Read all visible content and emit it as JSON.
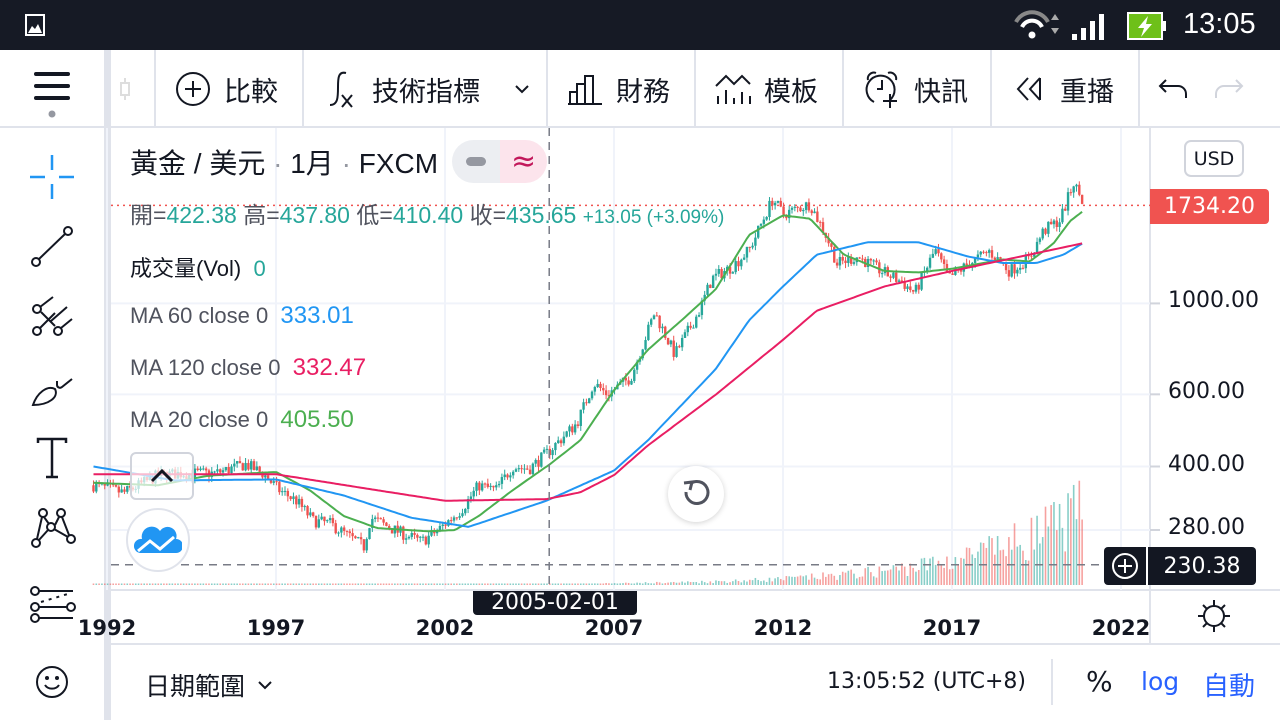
{
  "status_bar": {
    "time": "13:05",
    "icons": [
      "gallery-icon",
      "wifi-icon",
      "signal-icon",
      "battery-charging-icon"
    ]
  },
  "toolbar": {
    "menu_icon": "hamburger-icon",
    "items": [
      {
        "label": "比較",
        "icon": "plus-circle-icon"
      },
      {
        "label": "技術指標",
        "icon": "fx-icon"
      },
      {
        "label": "財務",
        "icon": "bar-chart-icon"
      },
      {
        "label": "模板",
        "icon": "template-icon"
      },
      {
        "label": "快訊",
        "icon": "alarm-icon"
      },
      {
        "label": "重播",
        "icon": "replay-icon"
      }
    ]
  },
  "sidebar": {
    "tools": [
      "crosshair-icon",
      "trend-line-icon",
      "pitchfork-icon",
      "brush-icon",
      "text-icon",
      "pattern-icon",
      "prediction-icon",
      "emoji-icon"
    ]
  },
  "legend": {
    "symbol": "黃金 / 美元",
    "interval": "1月",
    "exchange": "FXCM",
    "ohlc": {
      "o_label": "開=",
      "o": "422.38",
      "h_label": "高=",
      "h": "437.80",
      "l_label": "低=",
      "l": "410.40",
      "c_label": "收=",
      "c": "435.65",
      "change": "+13.05 (+3.09%)"
    },
    "volume": {
      "label": "成交量(Vol)",
      "value": "0"
    },
    "mas": [
      {
        "label": "MA 60 close 0",
        "value": "333.01",
        "color": "#2196f3"
      },
      {
        "label": "MA 120 close 0",
        "value": "332.47",
        "color": "#e91e63"
      },
      {
        "label": "MA 20 close 0",
        "value": "405.50",
        "color": "#4caf50"
      }
    ]
  },
  "price_axis": {
    "currency": "USD",
    "last_price": "1734.20",
    "crosshair_price": "230.38"
  },
  "crosshair": {
    "date": "2005-02-01",
    "price": 230.38
  },
  "bottom_bar": {
    "date_range": "日期範圍",
    "clock": "13:05:52 (UTC+8)",
    "percent": "%",
    "log": "log",
    "auto": "自動"
  },
  "colors": {
    "up": "#26a69a",
    "down": "#ef5350",
    "accent": "#2962ff",
    "last_price": "#f05350"
  },
  "chart_data": {
    "type": "candlestick",
    "scale": "log",
    "grid": true,
    "x_ticks": [
      "1992",
      "1997",
      "2002",
      "2007",
      "2012",
      "2017",
      "2022"
    ],
    "y_ticks": [
      "280.00",
      "400.00",
      "600.00",
      "1000.00"
    ],
    "ylim": [
      200,
      2500
    ],
    "price_path": [
      [
        1991.6,
        360
      ],
      [
        1992.5,
        345
      ],
      [
        1993.5,
        380
      ],
      [
        1994.2,
        385
      ],
      [
        1995.2,
        385
      ],
      [
        1996.1,
        405
      ],
      [
        1996.6,
        385
      ],
      [
        1997.1,
        350
      ],
      [
        1997.6,
        330
      ],
      [
        1998.1,
        295
      ],
      [
        1998.6,
        290
      ],
      [
        1999.6,
        255
      ],
      [
        1999.8,
        300
      ],
      [
        2000.5,
        280
      ],
      [
        2001.3,
        262
      ],
      [
        2001.8,
        280
      ],
      [
        2002.5,
        315
      ],
      [
        2003.0,
        360
      ],
      [
        2003.5,
        350
      ],
      [
        2004.0,
        400
      ],
      [
        2004.5,
        395
      ],
      [
        2005.0,
        430
      ],
      [
        2005.9,
        510
      ],
      [
        2006.4,
        640
      ],
      [
        2006.8,
        600
      ],
      [
        2007.5,
        660
      ],
      [
        2008.2,
        950
      ],
      [
        2008.8,
        750
      ],
      [
        2009.5,
        950
      ],
      [
        2009.9,
        1150
      ],
      [
        2010.5,
        1230
      ],
      [
        2011.0,
        1350
      ],
      [
        2011.7,
        1800
      ],
      [
        2012.0,
        1650
      ],
      [
        2012.8,
        1750
      ],
      [
        2013.3,
        1450
      ],
      [
        2013.6,
        1250
      ],
      [
        2014.2,
        1300
      ],
      [
        2014.9,
        1200
      ],
      [
        2015.5,
        1130
      ],
      [
        2015.9,
        1060
      ],
      [
        2016.5,
        1350
      ],
      [
        2016.9,
        1150
      ],
      [
        2017.5,
        1250
      ],
      [
        2018.1,
        1340
      ],
      [
        2018.7,
        1200
      ],
      [
        2019.3,
        1290
      ],
      [
        2019.7,
        1500
      ],
      [
        2020.2,
        1600
      ],
      [
        2020.6,
        1970
      ],
      [
        2020.92,
        1734.2
      ]
    ],
    "ma_series": [
      {
        "name": "MA 20",
        "color": "#4caf50",
        "points": [
          [
            1991.6,
            365
          ],
          [
            1993.5,
            360
          ],
          [
            1995,
            380
          ],
          [
            1997,
            388
          ],
          [
            1998,
            350
          ],
          [
            1999,
            303
          ],
          [
            2000,
            283
          ],
          [
            2001.5,
            278
          ],
          [
            2002.3,
            280
          ],
          [
            2003,
            303
          ],
          [
            2004,
            350
          ],
          [
            2005.1,
            405
          ],
          [
            2006,
            463
          ],
          [
            2007,
            614
          ],
          [
            2008,
            770
          ],
          [
            2009,
            910
          ],
          [
            2010,
            1080
          ],
          [
            2011,
            1470
          ],
          [
            2012,
            1640
          ],
          [
            2012.8,
            1610
          ],
          [
            2013.8,
            1315
          ],
          [
            2015,
            1200
          ],
          [
            2016,
            1190
          ],
          [
            2017,
            1215
          ],
          [
            2018.5,
            1280
          ],
          [
            2019.3,
            1265
          ],
          [
            2020,
            1400
          ],
          [
            2020.5,
            1590
          ],
          [
            2020.92,
            1690
          ]
        ]
      },
      {
        "name": "MA 60",
        "color": "#2196f3",
        "points": [
          [
            1991.6,
            400
          ],
          [
            1994,
            370
          ],
          [
            1997,
            372
          ],
          [
            1999,
            340
          ],
          [
            2001,
            300
          ],
          [
            2002.7,
            285
          ],
          [
            2005,
            330
          ],
          [
            2007,
            391
          ],
          [
            2008,
            463
          ],
          [
            2010,
            690
          ],
          [
            2011,
            910
          ],
          [
            2012,
            1100
          ],
          [
            2013,
            1315
          ],
          [
            2014.5,
            1410
          ],
          [
            2016,
            1410
          ],
          [
            2017.5,
            1300
          ],
          [
            2018.5,
            1255
          ],
          [
            2019.5,
            1255
          ],
          [
            2020.3,
            1315
          ],
          [
            2020.92,
            1410
          ]
        ]
      },
      {
        "name": "MA 120",
        "color": "#e91e63",
        "points": [
          [
            1991.6,
            383
          ],
          [
            1997,
            383
          ],
          [
            2000,
            350
          ],
          [
            2002,
            330
          ],
          [
            2005,
            333
          ],
          [
            2006,
            346
          ],
          [
            2007,
            381
          ],
          [
            2008,
            450
          ],
          [
            2010,
            598
          ],
          [
            2012,
            815
          ],
          [
            2013,
            960
          ],
          [
            2015,
            1100
          ],
          [
            2017,
            1200
          ],
          [
            2019,
            1300
          ],
          [
            2020.92,
            1405
          ]
        ]
      }
    ]
  }
}
